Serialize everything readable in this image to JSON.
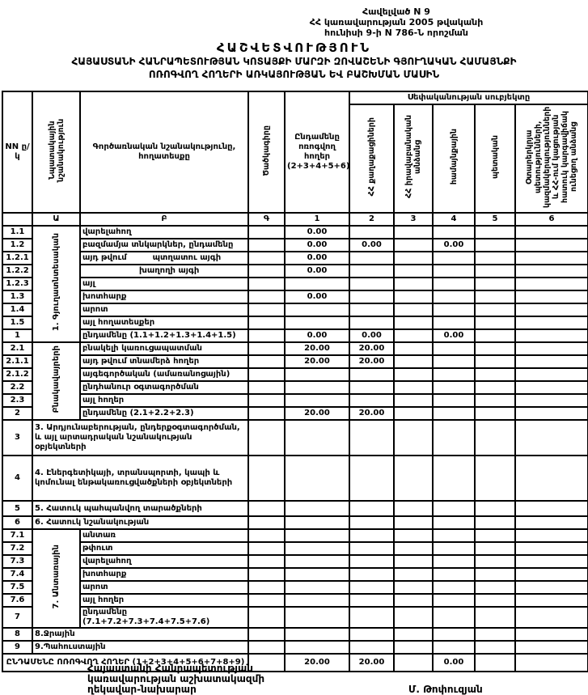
{
  "annex": {
    "line1": "Հավելված N 9",
    "line2": "ՀՀ կառավարության 2005 թվականի",
    "line3": "հունիսի 9-ի N 786-Ն որոշման"
  },
  "titles": {
    "main": "ՀԱՇՎԵՏՎՈՒԹՅՈՒՆ",
    "sub1": "ՀԱՅԱՍՏԱՆԻ ՀԱՆՐԱՊԵՏՈՒԹՅԱՆ ԿՈՏԱՅՔԻ ՄԱՐԶԻ ԶՈՎԱՇԵՆԻ ԳՅՈՒՂԱԿԱՆ ՀԱՄԱՅՆՔԻ",
    "sub2": "ՈՌՈԳՎՈՂ ՀՈՂԵՐԻ ԱՌԿԱՅՈՒԹՅԱՆ ԵՎ ԲԱՇԽՄԱՆ ՄԱՍԻՆ"
  },
  "table": {
    "ownership_header": "Սեփականության սուբյեկտը",
    "col_headers": {
      "nn": "NN ը/կ",
      "purpose": "Նպատակային նշանակություն",
      "functional": "Գործառնական նշանակությունը, հողատեսքը",
      "code": "Ծածկագիրը",
      "total_irrigated": "Ընդամենը ոռոգվող հողեր (2+3+4+5+6)",
      "citizens": "ՀՀ քաղաքացիների",
      "legal": "ՀՀ իրավաբանական անձանց",
      "community": "համայնքային",
      "state": "պետական",
      "foreign": "Օտարերկրյա պետությունների, կազմակերպությունների և ՀՀ-ում կացության հատուկ կարգավիճակ ունեցող անձանց"
    },
    "letter_row": [
      "",
      "Ա",
      "Բ",
      "Գ",
      "1",
      "2",
      "3",
      "4",
      "5",
      "6"
    ],
    "rows": [
      {
        "nn": "1.1",
        "label": "վարելահող",
        "section": {
          "label": "1. Գյուղատնտեսական",
          "span": 9
        },
        "cells": [
          "",
          "0.00",
          "",
          "",
          "",
          "",
          ""
        ]
      },
      {
        "nn": "1.2",
        "label": "բազմամյա տնկարկներ, ընդամենը",
        "cells": [
          "",
          "0.00",
          "0.00",
          "",
          "0.00",
          "",
          ""
        ]
      },
      {
        "nn": "1.2.1",
        "split": [
          "այդ թվում",
          "պտղատու այգի"
        ],
        "cells": [
          "",
          "0.00",
          "",
          "",
          "",
          "",
          ""
        ]
      },
      {
        "nn": "1.2.2",
        "label": "խաղողի այգի",
        "indent": true,
        "cells": [
          "",
          "0.00",
          "",
          "",
          "",
          "",
          ""
        ]
      },
      {
        "nn": "1.2.3",
        "label": "այլ",
        "cells": [
          "",
          "",
          "",
          "",
          "",
          "",
          ""
        ]
      },
      {
        "nn": "1.3",
        "label": "խոտհարք",
        "cells": [
          "",
          "0.00",
          "",
          "",
          "",
          "",
          ""
        ]
      },
      {
        "nn": "1.4",
        "label": "արոտ",
        "cells": [
          "",
          "",
          "",
          "",
          "",
          "",
          ""
        ]
      },
      {
        "nn": "1.5",
        "label": "այլ հողատեսքեր",
        "cells": [
          "",
          "",
          "",
          "",
          "",
          "",
          ""
        ]
      },
      {
        "nn": "1",
        "label": "ընդամենը (1.1+1.2+1.3+1.4+1.5)",
        "cells": [
          "",
          "0.00",
          "0.00",
          "",
          "0.00",
          "",
          ""
        ]
      },
      {
        "nn": "2.1",
        "label": "բնակելի կառուցապատման",
        "section": {
          "label": "Բնակավայրերի",
          "span": 6
        },
        "cells": [
          "",
          "20.00",
          "20.00",
          "",
          "",
          "",
          ""
        ]
      },
      {
        "nn": "2.1.1",
        "label": "այդ թվում տնամերձ հողեր",
        "cells": [
          "",
          "20.00",
          "20.00",
          "",
          "",
          "",
          ""
        ]
      },
      {
        "nn": "2.1.2",
        "label": "այգեգործական (ամառանոցային)",
        "cells": [
          "",
          "",
          "",
          "",
          "",
          "",
          ""
        ]
      },
      {
        "nn": "2.2",
        "label": "ընդհանուր օգտագործման",
        "cells": [
          "",
          "",
          "",
          "",
          "",
          "",
          ""
        ]
      },
      {
        "nn": "2.3",
        "label": "այլ հողեր",
        "cells": [
          "",
          "",
          "",
          "",
          "",
          "",
          ""
        ]
      },
      {
        "nn": "2",
        "label": "ընդամենը (2.1+2.2+2.3)",
        "cells": [
          "",
          "20.00",
          "20.00",
          "",
          "",
          "",
          ""
        ]
      },
      {
        "nn": "3",
        "label": "3. Արդյունաբերության, ընդերքօգտագործման, և այլ արտադրական նշանակության օբյեկտների",
        "merged": true,
        "cells": [
          "",
          "",
          "",
          "",
          "",
          "",
          ""
        ]
      },
      {
        "nn": "4",
        "label": "4. Էներգետիկայի, տրանսպորտի, կապի և կոմունալ ենթակառուցվածքների օբյեկտների",
        "merged": true,
        "cells": [
          "",
          "",
          "",
          "",
          "",
          "",
          ""
        ]
      },
      {
        "nn": "5",
        "label": "5. Հատուկ պահպանվող տարածքների",
        "merged": true,
        "cells": [
          "",
          "",
          "",
          "",
          "",
          "",
          ""
        ]
      },
      {
        "nn": "6",
        "label": "6. Հատուկ նշանակության",
        "merged": true,
        "cells": [
          "",
          "",
          "",
          "",
          "",
          "",
          ""
        ]
      },
      {
        "nn": "7.1",
        "label": "անտառ",
        "section": {
          "label": "7. Անտառային",
          "span": 7
        },
        "cells": [
          "",
          "",
          "",
          "",
          "",
          "",
          ""
        ]
      },
      {
        "nn": "7.2",
        "label": "թփուտ",
        "cells": [
          "",
          "",
          "",
          "",
          "",
          "",
          ""
        ]
      },
      {
        "nn": "7.3",
        "label": "վարելահող",
        "cells": [
          "",
          "",
          "",
          "",
          "",
          "",
          ""
        ]
      },
      {
        "nn": "7.4",
        "label": "խոտհարք",
        "cells": [
          "",
          "",
          "",
          "",
          "",
          "",
          ""
        ]
      },
      {
        "nn": "7.5",
        "label": "արոտ",
        "cells": [
          "",
          "",
          "",
          "",
          "",
          "",
          ""
        ]
      },
      {
        "nn": "7.6",
        "label": "այլ հողեր",
        "cells": [
          "",
          "",
          "",
          "",
          "",
          "",
          ""
        ]
      },
      {
        "nn": "7",
        "label": "ընդամենը (7.1+7.2+7.3+7.4+7.5+7.6)",
        "cells": [
          "",
          "",
          "",
          "",
          "",
          "",
          ""
        ]
      },
      {
        "nn": "8",
        "label": "8.Ջրային",
        "merged": true,
        "cells": [
          "",
          "",
          "",
          "",
          "",
          "",
          ""
        ]
      },
      {
        "nn": "9",
        "label": "9.Պահուստային",
        "merged": true,
        "cells": [
          "",
          "",
          "",
          "",
          "",
          "",
          ""
        ]
      }
    ],
    "total_row": {
      "label": "ԸՆԴԱՄԵՆԸ ՈՌՈԳՎՈՂ ՀՈՂԵՐ (1+2+3+4+5+6+7+8+9)",
      "cells": [
        "",
        "20.00",
        "20.00",
        "",
        "0.00",
        "",
        ""
      ]
    }
  },
  "footer": {
    "signatory_line1": "Հայաստանի Հանրապետության",
    "signatory_line2": "կառավարության աշխատակազմի",
    "signatory_line3": "ղեկավար-նախարար",
    "signatory_name": "Մ. Թոփուզյան"
  }
}
